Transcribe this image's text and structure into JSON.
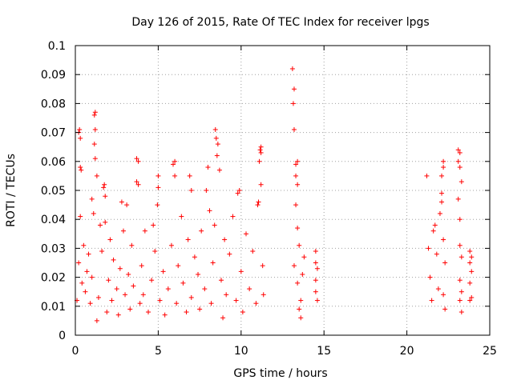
{
  "chart_data": {
    "type": "scatter",
    "title": "Day 126 of 2015, Rate Of TEC Index for receiver lpgs",
    "xlabel": "GPS time / hours",
    "ylabel": "ROTI / TECUs",
    "xlim": [
      0,
      25
    ],
    "ylim": [
      0,
      0.1
    ],
    "grid": true,
    "marker": "+",
    "color": "#ff0000",
    "x_ticks": [
      {
        "v": 0,
        "label": "0"
      },
      {
        "v": 5,
        "label": "5"
      },
      {
        "v": 10,
        "label": "10"
      },
      {
        "v": 15,
        "label": "15"
      },
      {
        "v": 20,
        "label": "20"
      },
      {
        "v": 25,
        "label": "25"
      }
    ],
    "y_ticks": [
      {
        "v": 0,
        "label": "0"
      },
      {
        "v": 0.01,
        "label": "0.01"
      },
      {
        "v": 0.02,
        "label": "0.02"
      },
      {
        "v": 0.03,
        "label": "0.03"
      },
      {
        "v": 0.04,
        "label": "0.04"
      },
      {
        "v": 0.05,
        "label": "0.05"
      },
      {
        "v": 0.06,
        "label": "0.06"
      },
      {
        "v": 0.07,
        "label": "0.07"
      },
      {
        "v": 0.08,
        "label": "0.08"
      },
      {
        "v": 0.09,
        "label": "0.09"
      },
      {
        "v": 0.1,
        "label": "0.1"
      }
    ],
    "series": [
      {
        "name": "ROTI",
        "points": [
          [
            0.1,
            0.012
          ],
          [
            0.2,
            0.025
          ],
          [
            0.2,
            0.07
          ],
          [
            0.25,
            0.071
          ],
          [
            0.3,
            0.068
          ],
          [
            0.3,
            0.058
          ],
          [
            0.35,
            0.057
          ],
          [
            0.3,
            0.041
          ],
          [
            0.4,
            0.018
          ],
          [
            0.5,
            0.031
          ],
          [
            0.6,
            0.015
          ],
          [
            0.7,
            0.022
          ],
          [
            0.8,
            0.028
          ],
          [
            0.9,
            0.011
          ],
          [
            1.0,
            0.02
          ],
          [
            1.0,
            0.047
          ],
          [
            1.1,
            0.042
          ],
          [
            1.15,
            0.076
          ],
          [
            1.2,
            0.077
          ],
          [
            1.2,
            0.071
          ],
          [
            1.15,
            0.066
          ],
          [
            1.2,
            0.061
          ],
          [
            1.3,
            0.055
          ],
          [
            1.3,
            0.005
          ],
          [
            1.4,
            0.013
          ],
          [
            1.5,
            0.038
          ],
          [
            1.6,
            0.029
          ],
          [
            1.7,
            0.051
          ],
          [
            1.75,
            0.052
          ],
          [
            1.8,
            0.048
          ],
          [
            1.8,
            0.039
          ],
          [
            1.9,
            0.008
          ],
          [
            2.0,
            0.019
          ],
          [
            2.1,
            0.033
          ],
          [
            2.2,
            0.012
          ],
          [
            2.3,
            0.026
          ],
          [
            2.5,
            0.016
          ],
          [
            2.6,
            0.007
          ],
          [
            2.7,
            0.023
          ],
          [
            2.8,
            0.046
          ],
          [
            2.9,
            0.036
          ],
          [
            3.0,
            0.014
          ],
          [
            3.1,
            0.045
          ],
          [
            3.2,
            0.021
          ],
          [
            3.3,
            0.009
          ],
          [
            3.4,
            0.031
          ],
          [
            3.5,
            0.017
          ],
          [
            3.7,
            0.053
          ],
          [
            3.8,
            0.052
          ],
          [
            3.7,
            0.061
          ],
          [
            3.8,
            0.06
          ],
          [
            3.9,
            0.011
          ],
          [
            4.0,
            0.024
          ],
          [
            4.1,
            0.014
          ],
          [
            4.2,
            0.036
          ],
          [
            4.4,
            0.008
          ],
          [
            4.6,
            0.019
          ],
          [
            4.7,
            0.038
          ],
          [
            4.8,
            0.029
          ],
          [
            5.0,
            0.055
          ],
          [
            5.0,
            0.051
          ],
          [
            4.95,
            0.045
          ],
          [
            5.1,
            0.012
          ],
          [
            5.3,
            0.022
          ],
          [
            5.4,
            0.007
          ],
          [
            5.6,
            0.016
          ],
          [
            5.8,
            0.031
          ],
          [
            5.9,
            0.059
          ],
          [
            6.0,
            0.06
          ],
          [
            6.0,
            0.055
          ],
          [
            6.1,
            0.011
          ],
          [
            6.2,
            0.024
          ],
          [
            6.4,
            0.041
          ],
          [
            6.5,
            0.018
          ],
          [
            6.7,
            0.008
          ],
          [
            6.8,
            0.033
          ],
          [
            6.9,
            0.055
          ],
          [
            7.0,
            0.05
          ],
          [
            7.0,
            0.013
          ],
          [
            7.2,
            0.027
          ],
          [
            7.4,
            0.021
          ],
          [
            7.5,
            0.009
          ],
          [
            7.6,
            0.036
          ],
          [
            7.8,
            0.016
          ],
          [
            7.9,
            0.05
          ],
          [
            8.0,
            0.058
          ],
          [
            8.1,
            0.043
          ],
          [
            8.2,
            0.011
          ],
          [
            8.3,
            0.025
          ],
          [
            8.4,
            0.038
          ],
          [
            8.45,
            0.071
          ],
          [
            8.5,
            0.068
          ],
          [
            8.6,
            0.066
          ],
          [
            8.55,
            0.062
          ],
          [
            8.7,
            0.057
          ],
          [
            8.8,
            0.019
          ],
          [
            8.9,
            0.006
          ],
          [
            9.0,
            0.033
          ],
          [
            9.1,
            0.014
          ],
          [
            9.3,
            0.028
          ],
          [
            9.5,
            0.041
          ],
          [
            9.7,
            0.012
          ],
          [
            9.8,
            0.049
          ],
          [
            9.9,
            0.05
          ],
          [
            10.0,
            0.022
          ],
          [
            10.1,
            0.008
          ],
          [
            10.3,
            0.035
          ],
          [
            10.5,
            0.016
          ],
          [
            10.7,
            0.029
          ],
          [
            10.9,
            0.011
          ],
          [
            11.0,
            0.045
          ],
          [
            11.05,
            0.046
          ],
          [
            11.15,
            0.064
          ],
          [
            11.2,
            0.065
          ],
          [
            11.2,
            0.063
          ],
          [
            11.1,
            0.06
          ],
          [
            11.2,
            0.052
          ],
          [
            11.3,
            0.024
          ],
          [
            11.35,
            0.014
          ],
          [
            13.1,
            0.092
          ],
          [
            13.2,
            0.085
          ],
          [
            13.15,
            0.08
          ],
          [
            13.2,
            0.071
          ],
          [
            13.3,
            0.055
          ],
          [
            13.3,
            0.059
          ],
          [
            13.4,
            0.06
          ],
          [
            13.4,
            0.052
          ],
          [
            13.3,
            0.045
          ],
          [
            13.4,
            0.037
          ],
          [
            13.5,
            0.031
          ],
          [
            13.2,
            0.024
          ],
          [
            13.4,
            0.018
          ],
          [
            13.6,
            0.012
          ],
          [
            13.5,
            0.009
          ],
          [
            13.6,
            0.006
          ],
          [
            13.7,
            0.021
          ],
          [
            13.8,
            0.027
          ],
          [
            14.5,
            0.029
          ],
          [
            14.6,
            0.023
          ],
          [
            14.5,
            0.019
          ],
          [
            14.5,
            0.015
          ],
          [
            14.6,
            0.012
          ],
          [
            14.5,
            0.025
          ],
          [
            21.2,
            0.055
          ],
          [
            21.3,
            0.03
          ],
          [
            21.4,
            0.02
          ],
          [
            21.5,
            0.012
          ],
          [
            21.6,
            0.036
          ],
          [
            21.7,
            0.038
          ],
          [
            21.8,
            0.028
          ],
          [
            21.9,
            0.016
          ],
          [
            22.0,
            0.042
          ],
          [
            22.1,
            0.055
          ],
          [
            22.1,
            0.046
          ],
          [
            22.2,
            0.058
          ],
          [
            22.2,
            0.06
          ],
          [
            22.1,
            0.049
          ],
          [
            22.2,
            0.033
          ],
          [
            22.3,
            0.025
          ],
          [
            22.2,
            0.014
          ],
          [
            22.3,
            0.009
          ],
          [
            23.1,
            0.064
          ],
          [
            23.2,
            0.063
          ],
          [
            23.1,
            0.06
          ],
          [
            23.2,
            0.058
          ],
          [
            23.3,
            0.053
          ],
          [
            23.1,
            0.047
          ],
          [
            23.2,
            0.04
          ],
          [
            23.2,
            0.031
          ],
          [
            23.3,
            0.027
          ],
          [
            23.2,
            0.019
          ],
          [
            23.3,
            0.015
          ],
          [
            23.2,
            0.012
          ],
          [
            23.3,
            0.008
          ],
          [
            23.8,
            0.029
          ],
          [
            23.9,
            0.027
          ],
          [
            23.8,
            0.025
          ],
          [
            23.9,
            0.022
          ],
          [
            23.8,
            0.018
          ],
          [
            23.9,
            0.013
          ],
          [
            23.8,
            0.012
          ]
        ]
      }
    ]
  }
}
